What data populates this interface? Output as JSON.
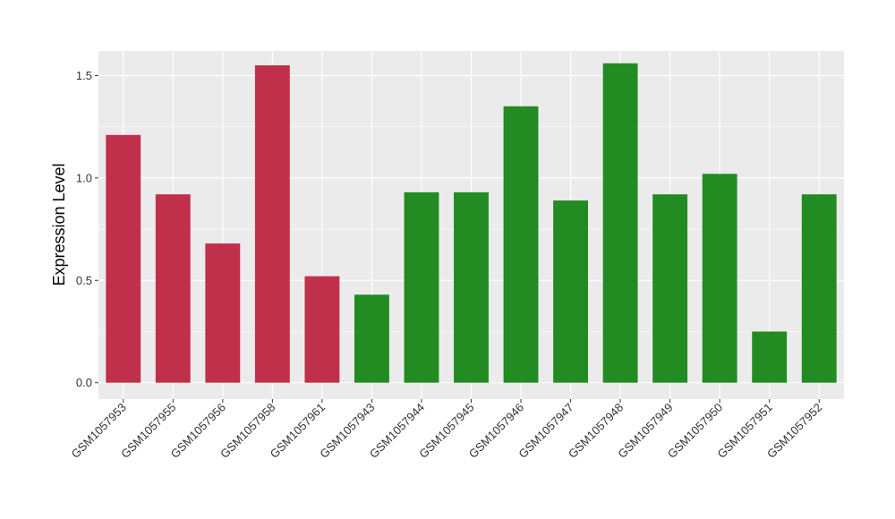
{
  "chart_data": {
    "type": "bar",
    "ylabel": "Expression Level",
    "xlabel": "",
    "ylim": [
      -0.08,
      1.62
    ],
    "yticks": [
      0.0,
      0.5,
      1.0,
      1.5
    ],
    "ytick_labels": [
      "0.0",
      "0.5",
      "1.0",
      "1.5"
    ],
    "grid": true,
    "legend": "none",
    "categories": [
      "GSM1057953",
      "GSM1057955",
      "GSM1057956",
      "GSM1057958",
      "GSM1057961",
      "GSM1057943",
      "GSM1057944",
      "GSM1057945",
      "GSM1057946",
      "GSM1057947",
      "GSM1057948",
      "GSM1057949",
      "GSM1057950",
      "GSM1057951",
      "GSM1057952"
    ],
    "values": [
      1.21,
      0.92,
      0.68,
      1.55,
      0.52,
      0.43,
      0.93,
      0.93,
      1.35,
      0.89,
      1.56,
      0.92,
      1.02,
      0.25,
      0.92
    ],
    "bar_colors": [
      "#c0304a",
      "#c0304a",
      "#c0304a",
      "#c0304a",
      "#c0304a",
      "#228b22",
      "#228b22",
      "#228b22",
      "#228b22",
      "#228b22",
      "#228b22",
      "#228b22",
      "#228b22",
      "#228b22",
      "#228b22"
    ],
    "panel_background": "#ebebeb",
    "grid_color": "#ffffff"
  }
}
